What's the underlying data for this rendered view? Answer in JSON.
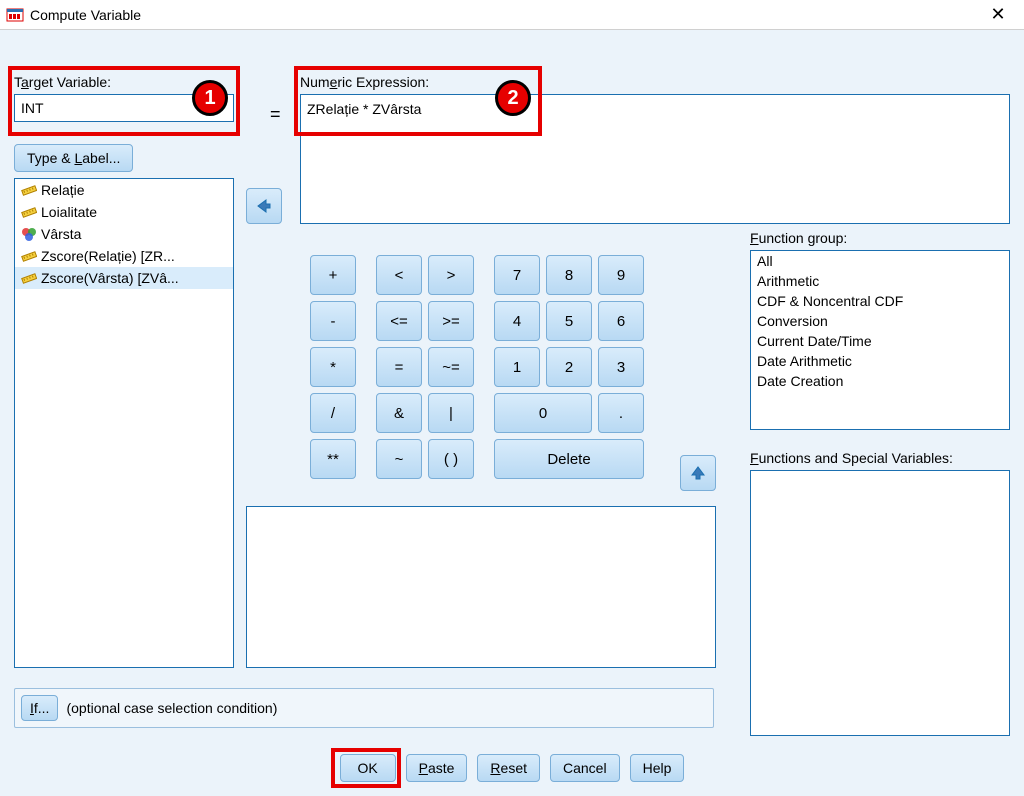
{
  "window": {
    "title": "Compute Variable"
  },
  "targetVariable": {
    "label_pre": "T",
    "label_u": "a",
    "label_post": "rget Variable:",
    "value": "INT"
  },
  "typeLabel": {
    "text_pre": "Type & ",
    "text_u": "L",
    "text_post": "abel..."
  },
  "equals": "=",
  "numericExpression": {
    "label_pre": "Num",
    "label_u": "e",
    "label_post": "ric Expression:",
    "value": "ZRelație * ZVârsta"
  },
  "variableList": [
    {
      "icon": "ruler",
      "label": "Relație"
    },
    {
      "icon": "ruler",
      "label": "Loialitate"
    },
    {
      "icon": "circles",
      "label": "Vârsta"
    },
    {
      "icon": "ruler",
      "label": "Zscore(Relație) [ZR..."
    },
    {
      "icon": "ruler",
      "label": "Zscore(Vârsta) [ZVâ..."
    }
  ],
  "selectedVarIndex": 4,
  "keypad": {
    "rows": [
      [
        "+",
        "<",
        ">",
        "7",
        "8",
        "9"
      ],
      [
        "-",
        "<=",
        ">=",
        "4",
        "5",
        "6"
      ],
      [
        "*",
        "=",
        "~=",
        "1",
        "2",
        "3"
      ],
      [
        "/",
        "&",
        "|",
        "0",
        ".",
        ""
      ],
      [
        "**",
        "~",
        "( )",
        "Delete",
        "",
        ""
      ]
    ]
  },
  "functionGroup": {
    "label_u": "F",
    "label_post": "unction group:",
    "items": [
      "All",
      "Arithmetic",
      "CDF & Noncentral CDF",
      "Conversion",
      "Current Date/Time",
      "Date Arithmetic",
      "Date Creation"
    ]
  },
  "functionsSpecial": {
    "label_u": "F",
    "label_post": "unctions and Special Variables:"
  },
  "ifRow": {
    "btn_u": "I",
    "btn_post": "f...",
    "text": "(optional case selection condition)"
  },
  "actions": {
    "ok": "OK",
    "paste_u": "P",
    "paste_post": "aste",
    "reset_u": "R",
    "reset_post": "eset",
    "cancel": "Cancel",
    "help": "Help"
  },
  "callouts": {
    "c1": "1",
    "c2": "2"
  },
  "colors": {
    "bg": "#ebf3fa",
    "border": "#1a6fb0",
    "btnTop": "#d9ecfb",
    "btnBot": "#b8d9f3",
    "highlight": "#e60000"
  }
}
